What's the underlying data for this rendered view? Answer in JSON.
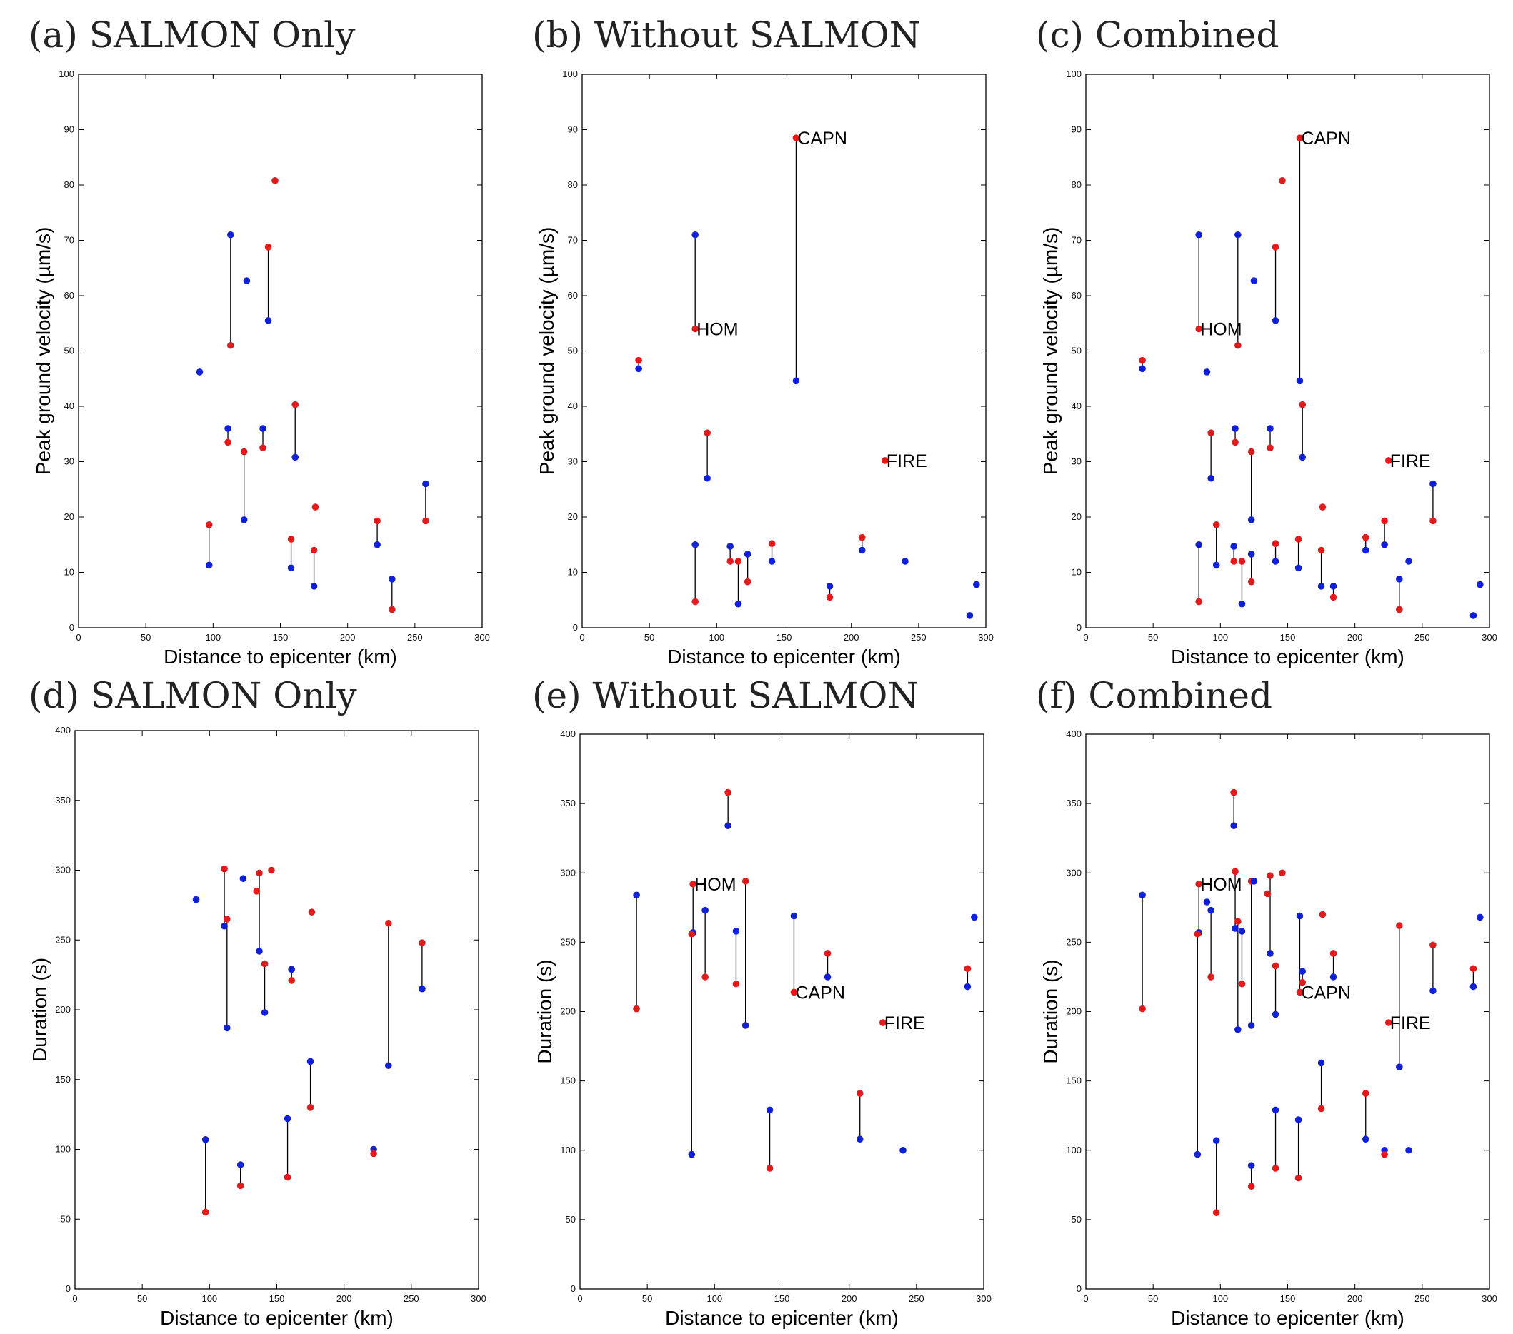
{
  "colors": {
    "red": "#e31a1c",
    "blue": "#1020d8",
    "line": "#000000"
  },
  "chart_data": [
    {
      "type": "scatter",
      "title": "(a) SALMON Only",
      "xlabel": "Distance to epicenter (km)",
      "ylabel": "Peak ground velocity (µm/s)",
      "xlim": [
        0,
        300
      ],
      "ylim": [
        0,
        100
      ],
      "xticks": [
        "0",
        "50",
        "100",
        "150",
        "200",
        "250",
        "300"
      ],
      "yticks": [
        "0",
        "10",
        "20",
        "30",
        "40",
        "50",
        "60",
        "70",
        "80",
        "90",
        "100"
      ],
      "pairs": [
        [
          113,
          71,
          51
        ],
        [
          141,
          55.5,
          68.8
        ],
        [
          111,
          36,
          33.5
        ],
        [
          137,
          36,
          32.5
        ],
        [
          123,
          19.5,
          31.8
        ],
        [
          161,
          30.8,
          40.3
        ],
        [
          97,
          11.3,
          18.6
        ],
        [
          158,
          10.8,
          16
        ],
        [
          175,
          7.5,
          14
        ],
        [
          222,
          15,
          19.3
        ],
        [
          233,
          8.8,
          3.3
        ],
        [
          258,
          26,
          19.3
        ]
      ],
      "blue_only": [
        [
          90,
          46.2
        ],
        [
          125,
          62.7
        ]
      ],
      "red_only": [
        [
          146,
          80.8
        ],
        [
          176,
          21.8
        ]
      ],
      "labels": []
    },
    {
      "type": "scatter",
      "title": "(b) Without SALMON",
      "xlabel": "Distance to epicenter (km)",
      "ylabel": "Peak ground velocity (µm/s)",
      "xlim": [
        0,
        300
      ],
      "ylim": [
        0,
        100
      ],
      "xticks": [
        "0",
        "50",
        "100",
        "150",
        "200",
        "250",
        "300"
      ],
      "yticks": [
        "0",
        "10",
        "20",
        "30",
        "40",
        "50",
        "60",
        "70",
        "80",
        "90",
        "100"
      ],
      "pairs": [
        [
          42,
          46.8,
          48.3
        ],
        [
          84,
          71,
          54
        ],
        [
          159,
          44.6,
          88.5
        ],
        [
          93,
          27,
          35.2
        ],
        [
          84,
          15,
          4.7
        ],
        [
          110,
          14.7,
          12
        ],
        [
          116,
          4.3,
          12
        ],
        [
          123,
          13.3,
          8.3
        ],
        [
          141,
          12,
          15.2
        ],
        [
          184,
          7.5,
          5.5
        ],
        [
          208,
          14,
          16.3
        ]
      ],
      "blue_only": [
        [
          240,
          12
        ],
        [
          288,
          2.2
        ],
        [
          293,
          7.8
        ]
      ],
      "red_only": [
        [
          225,
          30.2
        ]
      ],
      "labels": [
        {
          "text": "HOM",
          "x": 84,
          "y": 54
        },
        {
          "text": "CAPN",
          "x": 159,
          "y": 88.5
        },
        {
          "text": "FIRE",
          "x": 225,
          "y": 30.2
        }
      ]
    },
    {
      "type": "scatter",
      "title": "(c) Combined",
      "xlabel": "Distance to epicenter (km)",
      "ylabel": "Peak ground velocity (µm/s)",
      "xlim": [
        0,
        300
      ],
      "ylim": [
        0,
        100
      ],
      "xticks": [
        "0",
        "50",
        "100",
        "150",
        "200",
        "250",
        "300"
      ],
      "yticks": [
        "0",
        "10",
        "20",
        "30",
        "40",
        "50",
        "60",
        "70",
        "80",
        "90",
        "100"
      ],
      "pairs": [
        [
          42,
          46.8,
          48.3
        ],
        [
          84,
          71,
          54
        ],
        [
          113,
          71,
          51
        ],
        [
          141,
          55.5,
          68.8
        ],
        [
          159,
          44.6,
          88.5
        ],
        [
          93,
          27,
          35.2
        ],
        [
          111,
          36,
          33.5
        ],
        [
          137,
          36,
          32.5
        ],
        [
          123,
          19.5,
          31.8
        ],
        [
          161,
          30.8,
          40.3
        ],
        [
          97,
          11.3,
          18.6
        ],
        [
          84,
          15,
          4.7
        ],
        [
          110,
          14.7,
          12
        ],
        [
          116,
          4.3,
          12
        ],
        [
          123,
          13.3,
          8.3
        ],
        [
          141,
          12,
          15.2
        ],
        [
          158,
          10.8,
          16
        ],
        [
          175,
          7.5,
          14
        ],
        [
          184,
          7.5,
          5.5
        ],
        [
          208,
          14,
          16.3
        ],
        [
          222,
          15,
          19.3
        ],
        [
          233,
          8.8,
          3.3
        ],
        [
          258,
          26,
          19.3
        ]
      ],
      "blue_only": [
        [
          90,
          46.2
        ],
        [
          125,
          62.7
        ],
        [
          240,
          12
        ],
        [
          288,
          2.2
        ],
        [
          293,
          7.8
        ]
      ],
      "red_only": [
        [
          146,
          80.8
        ],
        [
          176,
          21.8
        ],
        [
          225,
          30.2
        ]
      ],
      "labels": [
        {
          "text": "HOM",
          "x": 84,
          "y": 54
        },
        {
          "text": "CAPN",
          "x": 159,
          "y": 88.5
        },
        {
          "text": "FIRE",
          "x": 225,
          "y": 30.2
        }
      ]
    },
    {
      "type": "scatter",
      "title": "(d) SALMON Only",
      "xlabel": "Distance to epicenter (km)",
      "ylabel": "Duration (s)",
      "xlim": [
        0,
        300
      ],
      "ylim": [
        0,
        400
      ],
      "xticks": [
        "0",
        "50",
        "100",
        "150",
        "200",
        "250",
        "300"
      ],
      "yticks": [
        "0",
        "50",
        "100",
        "150",
        "200",
        "250",
        "300",
        "350",
        "400"
      ],
      "pairs": [
        [
          111,
          260,
          301
        ],
        [
          113,
          187,
          265
        ],
        [
          137,
          242,
          298
        ],
        [
          141,
          198,
          233
        ],
        [
          161,
          229,
          221
        ],
        [
          97,
          107,
          55
        ],
        [
          123,
          89,
          74
        ],
        [
          158,
          122,
          80
        ],
        [
          175,
          163,
          130
        ],
        [
          222,
          100,
          97
        ],
        [
          233,
          160,
          262
        ],
        [
          258,
          215,
          248
        ]
      ],
      "blue_only": [
        [
          90,
          279
        ],
        [
          125,
          294
        ]
      ],
      "red_only": [
        [
          135,
          285
        ],
        [
          146,
          300
        ],
        [
          176,
          270
        ]
      ],
      "labels": []
    },
    {
      "type": "scatter",
      "title": "(e) Without SALMON",
      "xlabel": "Distance to epicenter (km)",
      "ylabel": "Duration (s)",
      "xlim": [
        0,
        300
      ],
      "ylim": [
        0,
        400
      ],
      "xticks": [
        "0",
        "50",
        "100",
        "150",
        "200",
        "250",
        "300"
      ],
      "yticks": [
        "0",
        "50",
        "100",
        "150",
        "200",
        "250",
        "300",
        "350",
        "400"
      ],
      "pairs": [
        [
          42,
          284,
          202
        ],
        [
          84,
          257,
          292
        ],
        [
          83,
          97,
          256
        ],
        [
          110,
          334,
          358
        ],
        [
          93,
          273,
          225
        ],
        [
          116,
          258,
          220
        ],
        [
          123,
          190,
          294
        ],
        [
          159,
          269,
          214
        ],
        [
          141,
          129,
          87
        ],
        [
          184,
          225,
          242
        ],
        [
          208,
          108,
          141
        ],
        [
          288,
          218,
          231
        ]
      ],
      "blue_only": [
        [
          240,
          100
        ],
        [
          293,
          268
        ]
      ],
      "red_only": [
        [
          225,
          192
        ]
      ],
      "labels": [
        {
          "text": "HOM",
          "x": 84,
          "y": 292
        },
        {
          "text": "CAPN",
          "x": 159,
          "y": 214
        },
        {
          "text": "FIRE",
          "x": 225,
          "y": 192
        }
      ]
    },
    {
      "type": "scatter",
      "title": "(f) Combined",
      "xlabel": "Distance to epicenter (km)",
      "ylabel": "Duration (s)",
      "xlim": [
        0,
        300
      ],
      "ylim": [
        0,
        400
      ],
      "xticks": [
        "0",
        "50",
        "100",
        "150",
        "200",
        "250",
        "300"
      ],
      "yticks": [
        "0",
        "50",
        "100",
        "150",
        "200",
        "250",
        "300",
        "350",
        "400"
      ],
      "pairs": [
        [
          42,
          284,
          202
        ],
        [
          84,
          257,
          292
        ],
        [
          83,
          97,
          256
        ],
        [
          110,
          334,
          358
        ],
        [
          93,
          273,
          225
        ],
        [
          116,
          258,
          220
        ],
        [
          123,
          190,
          294
        ],
        [
          159,
          269,
          214
        ],
        [
          141,
          129,
          87
        ],
        [
          184,
          225,
          242
        ],
        [
          208,
          108,
          141
        ],
        [
          288,
          218,
          231
        ],
        [
          111,
          260,
          301
        ],
        [
          113,
          187,
          265
        ],
        [
          137,
          242,
          298
        ],
        [
          141,
          198,
          233
        ],
        [
          161,
          229,
          221
        ],
        [
          97,
          107,
          55
        ],
        [
          123,
          89,
          74
        ],
        [
          158,
          122,
          80
        ],
        [
          175,
          163,
          130
        ],
        [
          222,
          100,
          97
        ],
        [
          233,
          160,
          262
        ],
        [
          258,
          215,
          248
        ]
      ],
      "blue_only": [
        [
          90,
          279
        ],
        [
          125,
          294
        ],
        [
          240,
          100
        ],
        [
          293,
          268
        ]
      ],
      "red_only": [
        [
          135,
          285
        ],
        [
          146,
          300
        ],
        [
          176,
          270
        ],
        [
          225,
          192
        ]
      ],
      "labels": [
        {
          "text": "HOM",
          "x": 84,
          "y": 292
        },
        {
          "text": "CAPN",
          "x": 159,
          "y": 214
        },
        {
          "text": "FIRE",
          "x": 225,
          "y": 192
        }
      ]
    }
  ]
}
